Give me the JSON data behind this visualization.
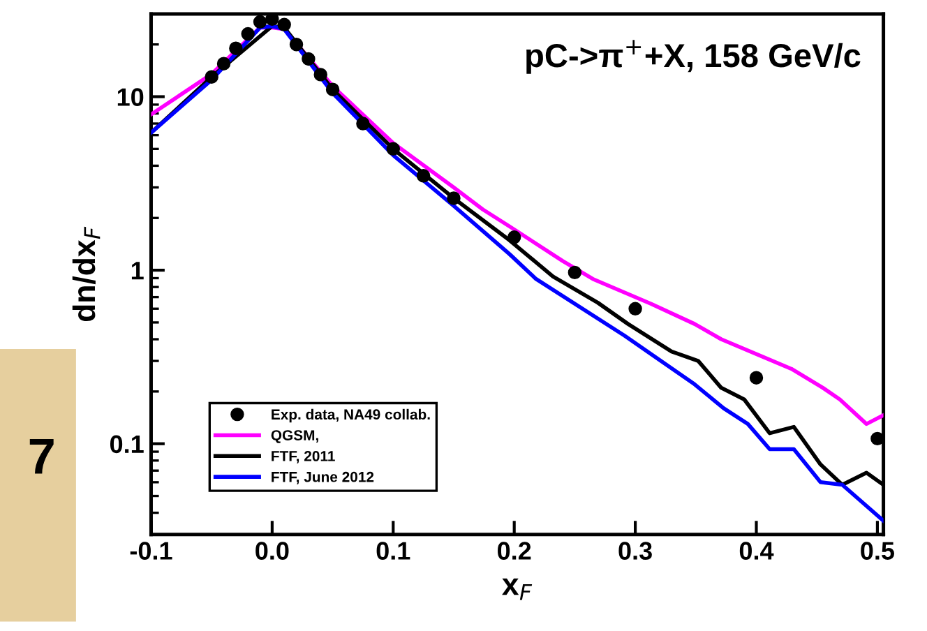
{
  "chart_data": {
    "type": "line",
    "title": "pC->π$^{+}$+X, 158 GeV/c",
    "xlabel": "x$_{F}$",
    "ylabel": "dn/dx$_{F}$",
    "annotations": [
      "7"
    ],
    "log": "y",
    "xlim": [
      -0.1,
      0.505
    ],
    "xticks": [
      {
        "value": -0.1,
        "label": "-0.1"
      },
      {
        "value": 0.0,
        "label": "0.0"
      },
      0.1,
      0.2,
      0.3,
      0.4,
      0.5
    ],
    "ylim": [
      0.03,
      30
    ],
    "yticks": [
      0.1,
      1,
      10
    ],
    "grid": false,
    "legend": "bottom left",
    "series": [
      {
        "name": "Exp. data, NA49 collab.",
        "type": "scatter",
        "marker": "circle",
        "color": "#000000",
        "x": [
          -0.05,
          -0.04,
          -0.03,
          -0.02,
          -0.01,
          0.0,
          0.01,
          0.02,
          0.03,
          0.04,
          0.05,
          0.075,
          0.1,
          0.125,
          0.15,
          0.2,
          0.25,
          0.3,
          0.4,
          0.5
        ],
        "values": [
          13,
          15.5,
          19,
          23,
          27,
          28,
          26,
          20,
          16.5,
          13.4,
          11,
          7.0,
          5.0,
          3.5,
          2.6,
          1.55,
          0.97,
          0.6,
          0.24,
          0.107
        ]
      },
      {
        "name": "QGSM,",
        "color": "#ff00ff",
        "x": [
          -0.1,
          -0.05,
          -0.01,
          0.0,
          0.01,
          0.05,
          0.1,
          0.15,
          0.174,
          0.196,
          0.24,
          0.265,
          0.313,
          0.349,
          0.371,
          0.429,
          0.455,
          0.469,
          0.491,
          0.505
        ],
        "values": [
          7.9,
          13.5,
          25,
          25,
          24.5,
          11.5,
          5.4,
          3.0,
          2.24,
          1.79,
          1.13,
          0.89,
          0.64,
          0.49,
          0.4,
          0.27,
          0.21,
          0.18,
          0.13,
          0.146
        ]
      },
      {
        "name": "FTF, 2011",
        "color": "#000000",
        "x": [
          -0.1,
          -0.05,
          0.0,
          0.01,
          0.05,
          0.1,
          0.15,
          0.196,
          0.232,
          0.269,
          0.294,
          0.33,
          0.352,
          0.371,
          0.39,
          0.411,
          0.431,
          0.453,
          0.471,
          0.491,
          0.505
        ],
        "values": [
          6.2,
          13,
          25.5,
          25,
          11,
          5.0,
          2.6,
          1.49,
          0.92,
          0.65,
          0.49,
          0.34,
          0.3,
          0.21,
          0.18,
          0.115,
          0.125,
          0.076,
          0.058,
          0.068,
          0.058
        ]
      },
      {
        "name": "FTF, June 2012",
        "color": "#0000ff",
        "x": [
          -0.1,
          -0.05,
          -0.01,
          0.0,
          0.01,
          0.05,
          0.1,
          0.15,
          0.196,
          0.218,
          0.291,
          0.349,
          0.373,
          0.393,
          0.411,
          0.431,
          0.453,
          0.471,
          0.505
        ],
        "values": [
          6.2,
          12.5,
          25,
          25.5,
          24.5,
          10.5,
          4.6,
          2.35,
          1.24,
          0.89,
          0.42,
          0.22,
          0.16,
          0.13,
          0.093,
          0.093,
          0.06,
          0.058,
          0.036
        ]
      }
    ]
  }
}
